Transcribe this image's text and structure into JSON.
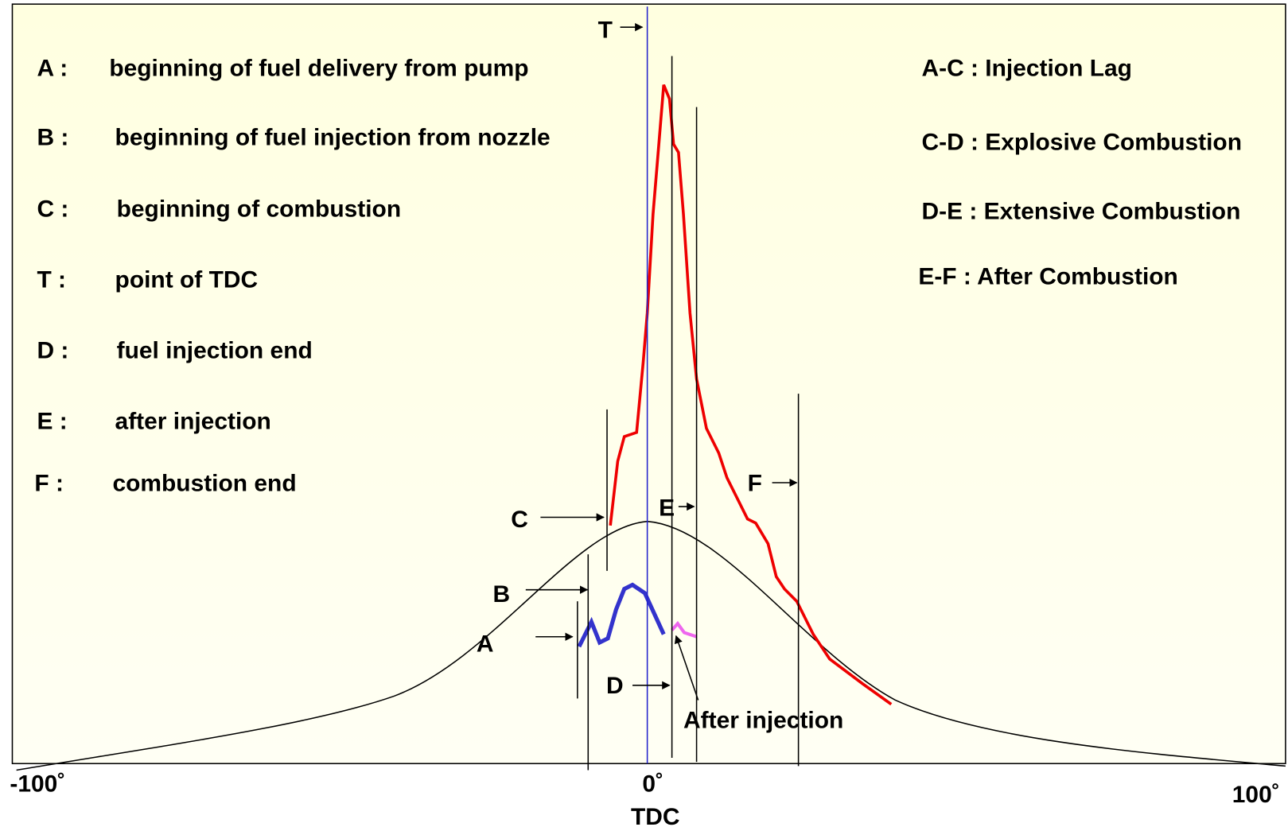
{
  "legend_left": [
    {
      "key": "A :",
      "text": "beginning of fuel delivery from pump"
    },
    {
      "key": "B :",
      "text": "beginning of fuel injection from nozzle"
    },
    {
      "key": "C :",
      "text": "beginning of combustion"
    },
    {
      "key": "T :",
      "text": "point of TDC"
    },
    {
      "key": "D :",
      "text": "fuel injection end"
    },
    {
      "key": "E :",
      "text": "after injection"
    },
    {
      "key": "F :",
      "text": "combustion end"
    }
  ],
  "legend_right": [
    "A-C : Injection Lag",
    "C-D : Explosive Combustion",
    "D-E : Extensive Combustion",
    "E-F : After Combustion"
  ],
  "points": {
    "A": "A",
    "B": "B",
    "C": "C",
    "D": "D",
    "E": "E",
    "F": "F",
    "T": "T"
  },
  "after_injection": "After injection",
  "axis": {
    "left": "-100˚",
    "center": "0˚",
    "right": "100˚",
    "tdc": "TDC"
  }
}
